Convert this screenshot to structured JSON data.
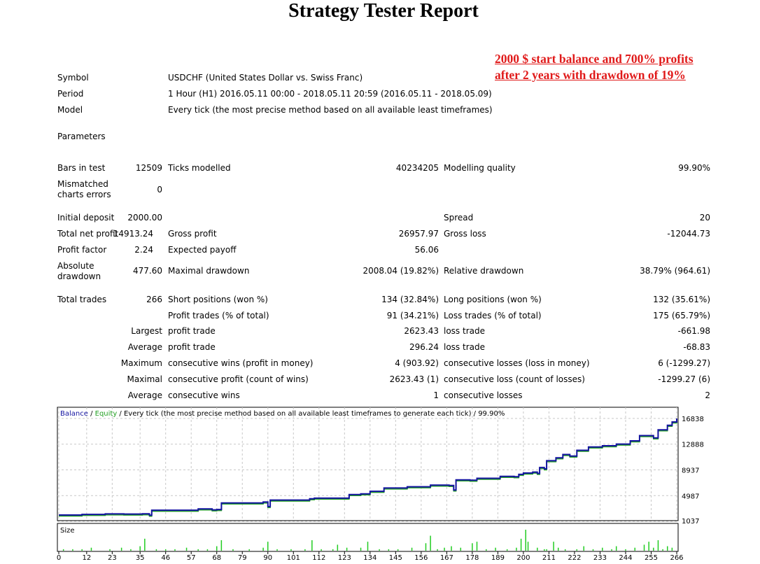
{
  "title": "Strategy Tester Report",
  "annotation": {
    "line1": "2000 $ start balance and 700% profits",
    "line2": "after 2 years with drawdown of 19%",
    "color": "#e01919"
  },
  "info": {
    "symbol_label": "Symbol",
    "symbol": "USDCHF (United States Dollar vs. Swiss Franc)",
    "period_label": "Period",
    "period": "1 Hour (H1) 2016.05.11 00:00 - 2018.05.11 20:59 (2016.05.11 - 2018.05.09)",
    "model_label": "Model",
    "model": "Every tick (the most precise method based on all available least timeframes)",
    "parameters_label": "Parameters"
  },
  "stats": {
    "bars_label": "Bars in test",
    "bars": "12509",
    "ticks_label": "Ticks modelled",
    "ticks": "40234205",
    "quality_label": "Modelling quality",
    "quality": "99.90%",
    "mismatch_label_1": "Mismatched",
    "mismatch_label_2": "charts errors",
    "mismatch": "0",
    "deposit_label": "Initial deposit",
    "deposit": "2000.00",
    "spread_label": "Spread",
    "spread": "20",
    "net_profit_label": "Total net profit",
    "net_profit": "14913.24",
    "gross_profit_label": "Gross profit",
    "gross_profit": "26957.97",
    "gross_loss_label": "Gross loss",
    "gross_loss": "-12044.73",
    "profit_factor_label": "Profit factor",
    "profit_factor": "2.24",
    "expected_payoff_label": "Expected payoff",
    "expected_payoff": "56.06",
    "abs_dd_label_1": "Absolute",
    "abs_dd_label_2": "drawdown",
    "abs_dd": "477.60",
    "max_dd_label": "Maximal drawdown",
    "max_dd": "2008.04 (19.82%)",
    "rel_dd_label": "Relative drawdown",
    "rel_dd": "38.79% (964.61)",
    "total_trades_label": "Total trades",
    "total_trades": "266",
    "short_label": "Short positions (won %)",
    "short": "134 (32.84%)",
    "long_label": "Long positions (won %)",
    "long": "132 (35.61%)",
    "profit_trades_label": "Profit trades (% of total)",
    "profit_trades": "91 (34.21%)",
    "loss_trades_label": "Loss trades (% of total)",
    "loss_trades": "175 (65.79%)",
    "largest_label": "Largest",
    "largest_profit_label": "profit trade",
    "largest_profit": "2623.43",
    "largest_loss_label": "loss trade",
    "largest_loss": "-661.98",
    "average_label": "Average",
    "average_profit_label": "profit trade",
    "average_profit": "296.24",
    "average_loss_label": "loss trade",
    "average_loss": "-68.83",
    "maximum_label": "Maximum",
    "max_wins_label": "consecutive wins (profit in money)",
    "max_wins": "4 (903.92)",
    "max_losses_label": "consecutive losses (loss in money)",
    "max_losses": "6 (-1299.27)",
    "maximal_label": "Maximal",
    "max_profit_label": "consecutive profit (count of wins)",
    "max_profit": "2623.43 (1)",
    "max_loss_label": "consecutive loss (count of losses)",
    "max_loss": "-1299.27 (6)",
    "average2_label": "Average",
    "avg_wins_label": "consecutive wins",
    "avg_wins": "1",
    "avg_losses_label": "consecutive losses",
    "avg_losses": "2"
  },
  "chart_data": {
    "type": "line",
    "legend": {
      "balance": "Balance",
      "sep1": " / ",
      "equity": "Equity",
      "rest": " / Every tick (the most precise method based on all available least timeframes to generate each tick) / 99.90%"
    },
    "colors": {
      "balance": "#1414a0",
      "equity": "#22a022",
      "bars": "#22cc22",
      "grid": "#c8c8c8"
    },
    "y_ticks": [
      "16838",
      "12888",
      "8937",
      "4987",
      "1037"
    ],
    "y_tick_values": [
      16838,
      12888,
      8937,
      4987,
      1037
    ],
    "x_ticks": [
      "0",
      "12",
      "23",
      "35",
      "46",
      "57",
      "68",
      "79",
      "90",
      "101",
      "112",
      "123",
      "134",
      "145",
      "156",
      "167",
      "178",
      "189",
      "200",
      "211",
      "222",
      "233",
      "244",
      "255",
      "266"
    ],
    "x_range": [
      0,
      266
    ],
    "y_range": [
      1037,
      16838
    ],
    "size_label": "Size",
    "balance_points": [
      [
        0,
        2000
      ],
      [
        10,
        2100
      ],
      [
        20,
        2180
      ],
      [
        28,
        2150
      ],
      [
        36,
        2200
      ],
      [
        39,
        1980
      ],
      [
        40,
        2750
      ],
      [
        60,
        2950
      ],
      [
        66,
        2800
      ],
      [
        68,
        2850
      ],
      [
        70,
        3850
      ],
      [
        88,
        4000
      ],
      [
        90,
        3300
      ],
      [
        91,
        4300
      ],
      [
        108,
        4500
      ],
      [
        110,
        4600
      ],
      [
        125,
        5150
      ],
      [
        130,
        5250
      ],
      [
        134,
        5650
      ],
      [
        140,
        6150
      ],
      [
        150,
        6350
      ],
      [
        160,
        6600
      ],
      [
        168,
        6550
      ],
      [
        170,
        5850
      ],
      [
        171,
        7400
      ],
      [
        177,
        7350
      ],
      [
        180,
        7650
      ],
      [
        190,
        7950
      ],
      [
        196,
        7900
      ],
      [
        198,
        8250
      ],
      [
        200,
        8450
      ],
      [
        204,
        8600
      ],
      [
        206,
        8400
      ],
      [
        207,
        9300
      ],
      [
        209,
        9100
      ],
      [
        210,
        10350
      ],
      [
        214,
        10800
      ],
      [
        217,
        11300
      ],
      [
        220,
        11050
      ],
      [
        223,
        11950
      ],
      [
        228,
        12450
      ],
      [
        234,
        12650
      ],
      [
        240,
        12900
      ],
      [
        246,
        13400
      ],
      [
        250,
        14200
      ],
      [
        256,
        13850
      ],
      [
        258,
        15100
      ],
      [
        262,
        15800
      ],
      [
        264,
        16300
      ],
      [
        266,
        16838
      ]
    ],
    "size_bars": [
      [
        2,
        1
      ],
      [
        6,
        1
      ],
      [
        10,
        1
      ],
      [
        14,
        2
      ],
      [
        22,
        1
      ],
      [
        27,
        2
      ],
      [
        31,
        1
      ],
      [
        35,
        3
      ],
      [
        37,
        8
      ],
      [
        42,
        1
      ],
      [
        46,
        1
      ],
      [
        50,
        1
      ],
      [
        55,
        2
      ],
      [
        60,
        1
      ],
      [
        64,
        1
      ],
      [
        68,
        3
      ],
      [
        70,
        7
      ],
      [
        75,
        1
      ],
      [
        82,
        1
      ],
      [
        88,
        2
      ],
      [
        90,
        6
      ],
      [
        94,
        1
      ],
      [
        100,
        1
      ],
      [
        106,
        1
      ],
      [
        109,
        7
      ],
      [
        113,
        1
      ],
      [
        118,
        1
      ],
      [
        120,
        4
      ],
      [
        124,
        2
      ],
      [
        130,
        2
      ],
      [
        133,
        6
      ],
      [
        138,
        1
      ],
      [
        142,
        1
      ],
      [
        146,
        1
      ],
      [
        152,
        2
      ],
      [
        158,
        5
      ],
      [
        160,
        10
      ],
      [
        163,
        1
      ],
      [
        166,
        2
      ],
      [
        169,
        3
      ],
      [
        173,
        2
      ],
      [
        178,
        5
      ],
      [
        180,
        6
      ],
      [
        184,
        1
      ],
      [
        188,
        2
      ],
      [
        193,
        1
      ],
      [
        197,
        2
      ],
      [
        199,
        8
      ],
      [
        201,
        14
      ],
      [
        202,
        6
      ],
      [
        206,
        2
      ],
      [
        209,
        1
      ],
      [
        210,
        1
      ],
      [
        213,
        6
      ],
      [
        215,
        2
      ],
      [
        218,
        1
      ],
      [
        223,
        1
      ],
      [
        226,
        3
      ],
      [
        230,
        1
      ],
      [
        234,
        2
      ],
      [
        238,
        1
      ],
      [
        240,
        3
      ],
      [
        244,
        1
      ],
      [
        248,
        2
      ],
      [
        252,
        4
      ],
      [
        254,
        6
      ],
      [
        256,
        2
      ],
      [
        258,
        7
      ],
      [
        260,
        1
      ],
      [
        262,
        3
      ],
      [
        264,
        2
      ]
    ]
  }
}
